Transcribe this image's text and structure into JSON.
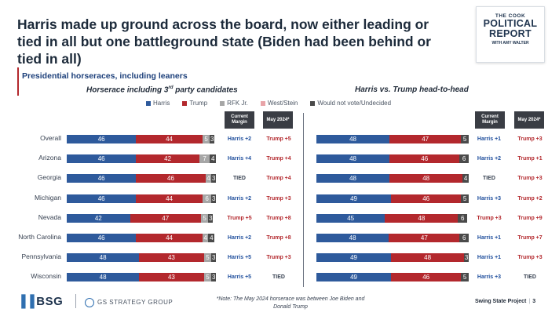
{
  "title": "Harris made up ground across the board, now either leading or tied in all but one battleground state (Biden had been behind or tied in all)",
  "logo": {
    "line1": "THE COOK",
    "line2": "POLITICAL",
    "line3": "REPORT",
    "line4": "WITH AMY WALTER"
  },
  "section_label": "Presidential horseraces, including leaners",
  "left_subtitle_main": "Horserace including 3",
  "left_subtitle_sup": "rd",
  "left_subtitle_tail": " party candidates",
  "right_subtitle": "Harris vs. Trump head-to-head",
  "colors": {
    "harris": "#2e5a9c",
    "trump": "#b3282d",
    "rfk": "#a6a6a6",
    "west_stein": "#e8a4a8",
    "undecided": "#4a4a4a",
    "header_bg": "#3a3d44",
    "blue_text": "#1f4e9c",
    "red_text": "#b3282d"
  },
  "legend": [
    "Harris",
    "Trump",
    "RFK Jr.",
    "West/Stein",
    "Would not vote/Undecided"
  ],
  "col_headers": {
    "current": "Current Margin",
    "may": "May 2024*"
  },
  "footer": {
    "bsg": "BSG",
    "gs": "GS STRATEGY GROUP",
    "note": "*Note: The May 2024 horserace was between Joe Biden and Donald Trump",
    "project": "Swing State Project",
    "page": "3"
  },
  "chart_data": [
    {
      "type": "bar",
      "stacked": true,
      "orientation": "horizontal",
      "title": "Horserace including 3rd party candidates",
      "categories": [
        "Overall",
        "Arizona",
        "Georgia",
        "Michigan",
        "Nevada",
        "North Carolina",
        "Pennsylvania",
        "Wisconsin"
      ],
      "series": [
        {
          "name": "Harris",
          "values": [
            46,
            46,
            46,
            46,
            42,
            46,
            48,
            48
          ]
        },
        {
          "name": "Trump",
          "values": [
            44,
            42,
            46,
            44,
            47,
            44,
            43,
            43
          ]
        },
        {
          "name": "RFK Jr.",
          "values": [
            5,
            7,
            4,
            6,
            5,
            4,
            5,
            5
          ]
        },
        {
          "name": "West/Stein",
          "values": [
            0,
            0,
            0,
            0,
            0,
            0,
            0,
            0
          ]
        },
        {
          "name": "Would not vote/Undecided",
          "values": [
            3,
            4,
            3,
            3,
            3,
            4,
            3,
            3
          ]
        }
      ],
      "current_margin": [
        "Harris +2",
        "Harris +4",
        "TIED",
        "Harris +2",
        "Trump +5",
        "Harris +2",
        "Harris +5",
        "Harris +5"
      ],
      "may_2024": [
        "Trump +5",
        "Trump +4",
        "Trump +4",
        "Trump +3",
        "Trump +8",
        "Trump +8",
        "Trump +3",
        "TIED"
      ]
    },
    {
      "type": "bar",
      "stacked": true,
      "orientation": "horizontal",
      "title": "Harris vs. Trump head-to-head",
      "categories": [
        "Overall",
        "Arizona",
        "Georgia",
        "Michigan",
        "Nevada",
        "North Carolina",
        "Pennsylvania",
        "Wisconsin"
      ],
      "series": [
        {
          "name": "Harris",
          "values": [
            48,
            48,
            48,
            49,
            45,
            48,
            49,
            49
          ]
        },
        {
          "name": "Trump",
          "values": [
            47,
            46,
            48,
            46,
            48,
            47,
            48,
            46
          ]
        },
        {
          "name": "Would not vote/Undecided",
          "values": [
            5,
            6,
            4,
            5,
            6,
            6,
            3,
            5
          ]
        }
      ],
      "current_margin": [
        "Harris +1",
        "Harris +2",
        "TIED",
        "Harris +3",
        "Trump +3",
        "Harris +1",
        "Harris +1",
        "Harris +3"
      ],
      "may_2024": [
        "Trump +3",
        "Trump +1",
        "Trump +3",
        "Trump +2",
        "Trump +9",
        "Trump +7",
        "Trump +3",
        "TIED"
      ]
    }
  ]
}
